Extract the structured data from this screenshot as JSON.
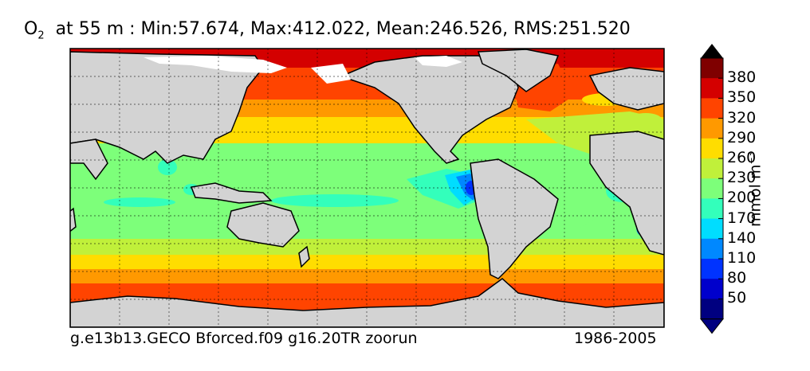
{
  "title": {
    "species": "O",
    "species_sub": "2",
    "text": "at 55 m : Min:57.674, Max:412.022, Mean:246.526, RMS:251.520"
  },
  "caption_left": "g.e13b13.GECO Bforced.f09 g16.20TR zoorun",
  "caption_right": "1986-2005",
  "colorbar": {
    "unit": "mmol m",
    "unit_sup": "−3",
    "ticks": [
      "380",
      "350",
      "320",
      "290",
      "260",
      "230",
      "200",
      "170",
      "140",
      "110",
      "80",
      "50"
    ],
    "colors": [
      "#7f0000",
      "#d40000",
      "#ff4400",
      "#ff9900",
      "#ffdd00",
      "#c0f03a",
      "#7dff7a",
      "#33ffbb",
      "#00ddff",
      "#0088ff",
      "#0033ff",
      "#0000cc",
      "#000080"
    ]
  },
  "map": {
    "land_color": "#d3d3d3",
    "sea_ice_color": "#ffffff",
    "gridlines": "dotted"
  }
}
